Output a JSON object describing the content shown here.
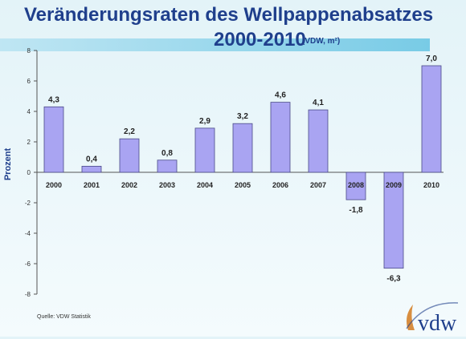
{
  "title_line1": "Veränderungsraten des Wellpappenabsatzes",
  "title_line2": "2000-2010",
  "subtitle": "(VDW, m²)",
  "source": "Quelle: VDW Statistik",
  "logo_text": "vdw",
  "colors": {
    "title": "#1f3f8c",
    "bar_fill": "#a9a4f2",
    "bar_stroke": "#4a4a88",
    "logo": "#1f3f8c",
    "logo_accent": "#d27a1e"
  },
  "chart_data": {
    "type": "bar",
    "categories": [
      "2000",
      "2001",
      "2002",
      "2003",
      "2004",
      "2005",
      "2006",
      "2007",
      "2008",
      "2009",
      "2010"
    ],
    "values": [
      4.3,
      0.4,
      2.2,
      0.8,
      2.9,
      3.2,
      4.6,
      4.1,
      -1.8,
      -6.3,
      7.0
    ],
    "value_labels": [
      "4,3",
      "0,4",
      "2,2",
      "0,8",
      "2,9",
      "3,2",
      "4,6",
      "4,1",
      "-1,8",
      "-6,3",
      "7,0"
    ],
    "ylabel": "Prozent",
    "xlabel": "",
    "ylim": [
      -8,
      8
    ],
    "yticks": [
      -8,
      -6,
      -4,
      -2,
      0,
      2,
      4,
      6,
      8
    ],
    "grid": false,
    "legend": "none"
  }
}
